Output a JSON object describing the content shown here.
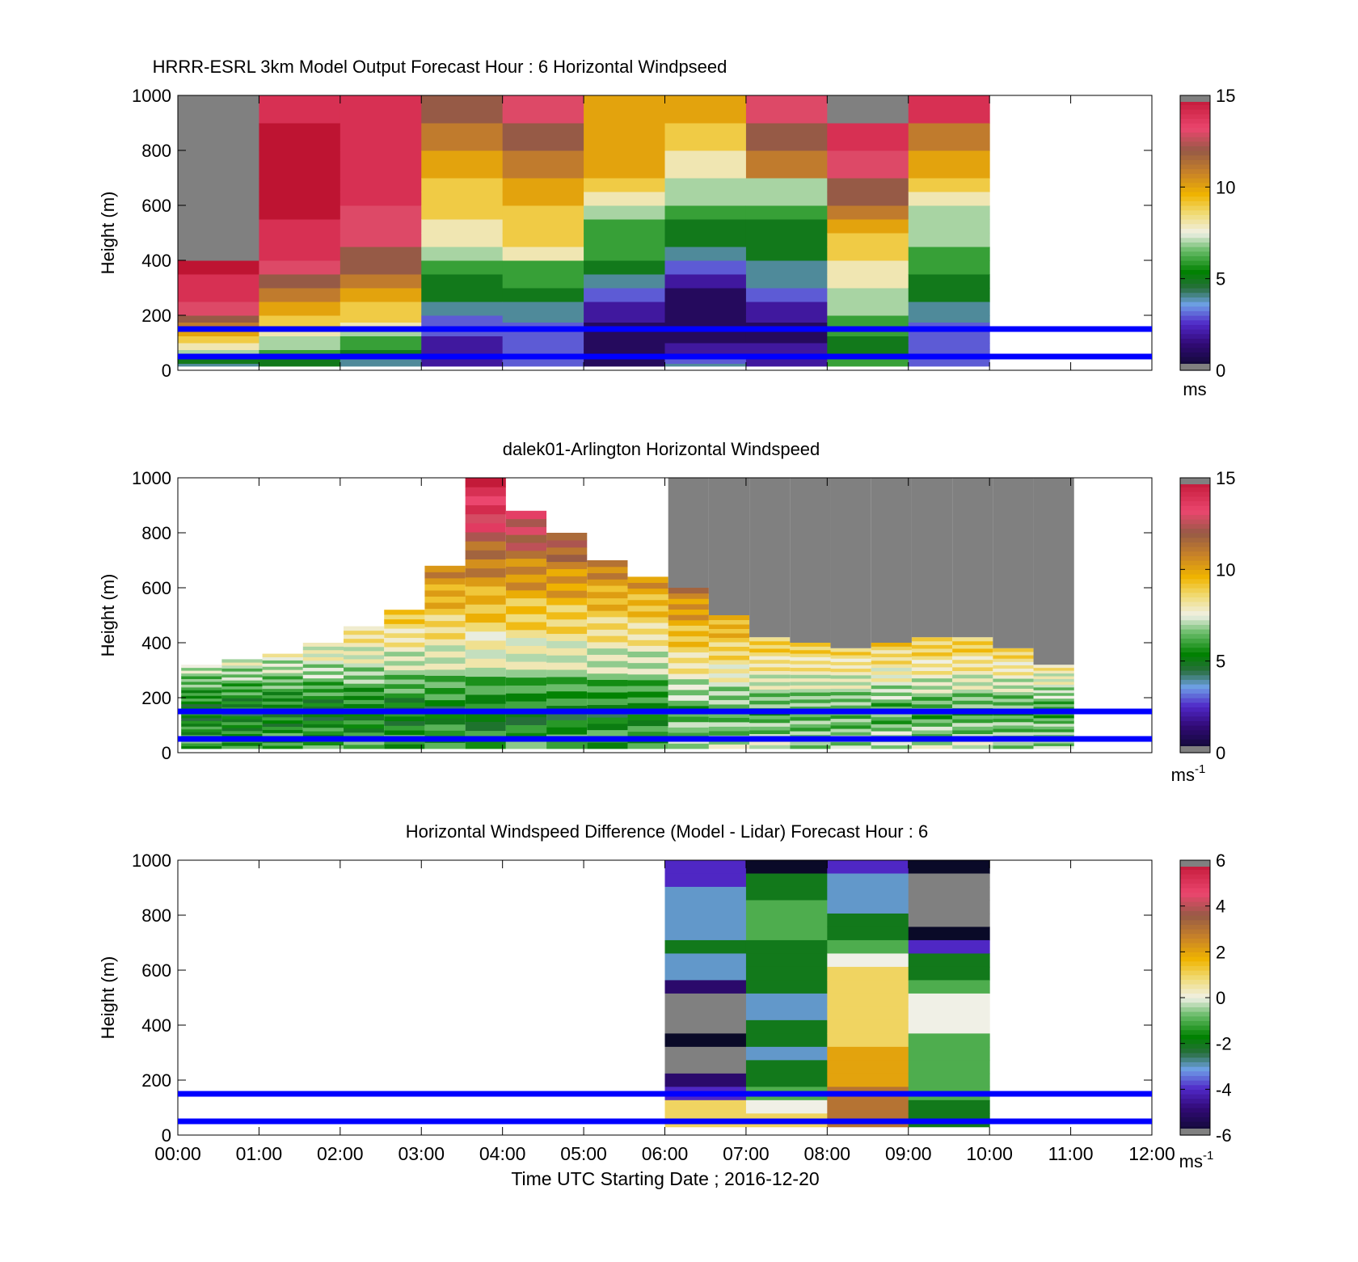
{
  "figure": {
    "x_tick_labels": [
      "00:00",
      "01:00",
      "02:00",
      "03:00",
      "04:00",
      "05:00",
      "06:00",
      "07:00",
      "08:00",
      "09:00",
      "10:00",
      "11:00",
      "12:00"
    ],
    "x_axis_label": "Time UTC  Starting Date ; 2016-12-20",
    "reference_lines_m": [
      50,
      150
    ],
    "reference_line_color": "#0000ff"
  },
  "chart_data": [
    {
      "type": "heatmap",
      "title": "HRRR-ESRL 3km Model Output   Forecast Hour : 6 Horizontal Windpseed",
      "ylabel": "Height (m)",
      "ylim": [
        0,
        1000
      ],
      "xlim": [
        0,
        12
      ],
      "y_ticks": [
        0,
        200,
        400,
        600,
        800,
        1000
      ],
      "colorbar": {
        "range": [
          0,
          15
        ],
        "ticks": [
          "0",
          "5",
          "10",
          "15"
        ],
        "unit": "ms"
      },
      "levels_m": [
        25,
        50,
        75,
        100,
        125,
        150,
        175,
        200,
        250,
        300,
        350,
        400,
        450,
        500,
        550,
        600,
        650,
        700,
        800,
        900,
        1000
      ],
      "columns": [
        {
          "hour": 0,
          "values": [
            4,
            5,
            7,
            8,
            9,
            10,
            11,
            12,
            13,
            14,
            14,
            15,
            null,
            null,
            null,
            null,
            null,
            null,
            null,
            null,
            null
          ]
        },
        {
          "hour": 1,
          "values": [
            5,
            5,
            6,
            7,
            7,
            8,
            9,
            9,
            10,
            11,
            12,
            13,
            14,
            14,
            14,
            15,
            15,
            15,
            15,
            15,
            14
          ]
        },
        {
          "hour": 2,
          "values": [
            4,
            4,
            5,
            6,
            6,
            7,
            8,
            9,
            9,
            10,
            11,
            12,
            12,
            13,
            13,
            13,
            14,
            14,
            14,
            14,
            14
          ]
        },
        {
          "hour": 3,
          "values": [
            2,
            2,
            2,
            2,
            2,
            3,
            3,
            3,
            4,
            5,
            5,
            6,
            7,
            8,
            8,
            9,
            9,
            9,
            10,
            11,
            12
          ]
        },
        {
          "hour": 4,
          "values": [
            3,
            3,
            3,
            3,
            3,
            3,
            3,
            4,
            4,
            5,
            6,
            6,
            8,
            9,
            9,
            9,
            10,
            10,
            11,
            12,
            13
          ]
        },
        {
          "hour": 5,
          "values": [
            1,
            1,
            1,
            1,
            1,
            1,
            1,
            2,
            2,
            3,
            4,
            5,
            6,
            6,
            6,
            7,
            8,
            9,
            10,
            10,
            10
          ]
        },
        {
          "hour": 6,
          "values": [
            4,
            3,
            2,
            2,
            1,
            1,
            1,
            1,
            1,
            1,
            2,
            3,
            4,
            5,
            5,
            6,
            7,
            7,
            8,
            9,
            10
          ]
        },
        {
          "hour": 7,
          "values": [
            2,
            2,
            2,
            2,
            1,
            1,
            1,
            2,
            2,
            3,
            4,
            4,
            5,
            5,
            5,
            6,
            7,
            7,
            11,
            12,
            13
          ]
        },
        {
          "hour": 8,
          "values": [
            6,
            6,
            5,
            5,
            5,
            6,
            6,
            6,
            7,
            7,
            8,
            8,
            9,
            9,
            10,
            11,
            12,
            12,
            13,
            14,
            null
          ]
        },
        {
          "hour": 9,
          "values": [
            3,
            3,
            3,
            3,
            3,
            3,
            3,
            4,
            4,
            5,
            5,
            6,
            6,
            7,
            7,
            7,
            8,
            9,
            10,
            11,
            14
          ]
        }
      ]
    },
    {
      "type": "heatmap",
      "title": "dalek01-Arlington  Horizontal Windspeed",
      "ylabel": "Height (m)",
      "ylim": [
        0,
        1000
      ],
      "xlim": [
        0,
        12
      ],
      "y_ticks": [
        0,
        200,
        400,
        600,
        800,
        1000
      ],
      "colorbar": {
        "range": [
          0,
          15
        ],
        "ticks": [
          "0",
          "5",
          "10",
          "15"
        ],
        "unit": "ms-1"
      },
      "approx_top_of_data_m": [
        320,
        340,
        360,
        400,
        460,
        520,
        680,
        1000,
        880,
        800,
        700,
        640,
        600,
        500,
        420,
        400,
        380,
        400,
        420,
        420,
        380,
        320
      ],
      "profile_reference_m": [
        {
          "h": 50,
          "v": 6
        },
        {
          "h": 150,
          "v": 5
        },
        {
          "h": 300,
          "v": 7
        },
        {
          "h": 500,
          "v": 9
        },
        {
          "h": 700,
          "v": 11
        },
        {
          "h": 900,
          "v": 14
        }
      ]
    },
    {
      "type": "heatmap",
      "title": "Horizontal Windspeed Difference (Model - Lidar) Forecast Hour : 6",
      "ylabel": "Height (m)",
      "ylim": [
        0,
        1000
      ],
      "xlim": [
        0,
        12
      ],
      "y_ticks": [
        0,
        200,
        400,
        600,
        800,
        1000
      ],
      "colorbar": {
        "range": [
          -6,
          6
        ],
        "ticks": [
          "-6",
          "-4",
          "-2",
          "0",
          "2",
          "4",
          "6"
        ],
        "unit": "ms-1"
      },
      "columns": [
        {
          "hour": 6,
          "values_top_down": [
            -4,
            -4,
            -3,
            -3,
            -3,
            -3,
            -2,
            -3,
            -3,
            -5,
            null,
            null,
            null,
            -6,
            null,
            null,
            -5,
            -4,
            1,
            1
          ]
        },
        {
          "hour": 7,
          "values_top_down": [
            -6,
            -2,
            -2,
            -1,
            -1,
            -1,
            -2,
            -2,
            -2,
            -2,
            -3,
            -3,
            -2,
            -2,
            -3,
            -2,
            -2,
            -1,
            0,
            1
          ]
        },
        {
          "hour": 8,
          "values_top_down": [
            -4,
            -3,
            -3,
            -3,
            -2,
            -2,
            -1,
            0,
            1,
            1,
            1,
            1,
            1,
            1,
            2,
            2,
            2,
            3,
            3,
            3
          ]
        },
        {
          "hour": 9,
          "values_top_down": [
            -6,
            null,
            null,
            null,
            null,
            -6,
            -4,
            -2,
            -2,
            -1,
            0,
            0,
            0,
            -1,
            -1,
            -1,
            -1,
            -1,
            -2,
            -2
          ]
        }
      ]
    }
  ]
}
